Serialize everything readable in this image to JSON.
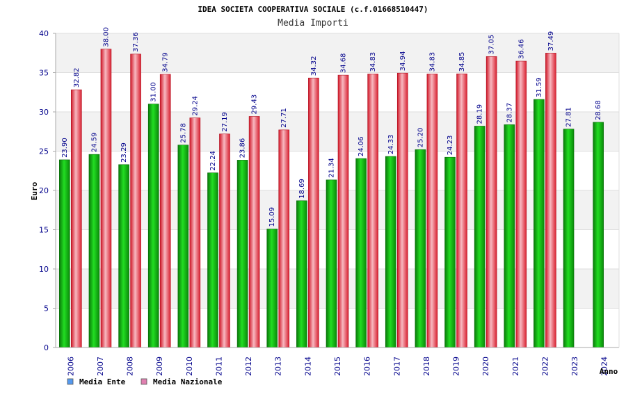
{
  "chart_data": {
    "type": "bar",
    "title": "IDEA SOCIETA COOPERATIVA SOCIALE (c.f.01668510447)",
    "subtitle": "Media Importi",
    "ylabel": "Euro",
    "xlabel": "Anno",
    "ylim": [
      0,
      40
    ],
    "yticks": [
      0,
      5,
      10,
      15,
      20,
      25,
      30,
      35,
      40
    ],
    "grid": true,
    "legend_position": "bottom-left",
    "categories": [
      "2006",
      "2007",
      "2008",
      "2009",
      "2010",
      "2011",
      "2012",
      "2013",
      "2014",
      "2015",
      "2016",
      "2017",
      "2018",
      "2019",
      "2020",
      "2021",
      "2022",
      "2023",
      "2024"
    ],
    "series": [
      {
        "name": "Media Ente",
        "color": "#1aaa1a",
        "legend_color": "#5599ee",
        "values": [
          23.9,
          24.59,
          23.29,
          31.0,
          25.78,
          22.24,
          23.86,
          15.09,
          18.69,
          21.34,
          24.06,
          24.33,
          25.2,
          24.23,
          28.19,
          28.37,
          31.59,
          27.81,
          28.68
        ],
        "labels": [
          "23.90",
          "24.59",
          "23.29",
          "31.00",
          "25.78",
          "22.24",
          "23.86",
          "15.09",
          "18.69",
          "21.34",
          "24.06",
          "24.33",
          "25.20",
          "24.23",
          "28.19",
          "28.37",
          "31.59",
          "27.81",
          "28.68"
        ]
      },
      {
        "name": "Media Nazionale",
        "color": "#e03040",
        "legend_color": "#e080b0",
        "values": [
          32.82,
          38.0,
          37.36,
          34.79,
          29.24,
          27.19,
          29.43,
          27.71,
          34.32,
          34.68,
          34.83,
          34.94,
          34.83,
          34.85,
          37.05,
          36.46,
          37.49,
          null,
          null
        ],
        "labels": [
          "32.82",
          "38.00",
          "37.36",
          "34.79",
          "29.24",
          "27.19",
          "29.43",
          "27.71",
          "34.32",
          "34.68",
          "34.83",
          "34.94",
          "34.83",
          "34.85",
          "37.05",
          "36.46",
          "37.49",
          "",
          ""
        ]
      }
    ]
  }
}
